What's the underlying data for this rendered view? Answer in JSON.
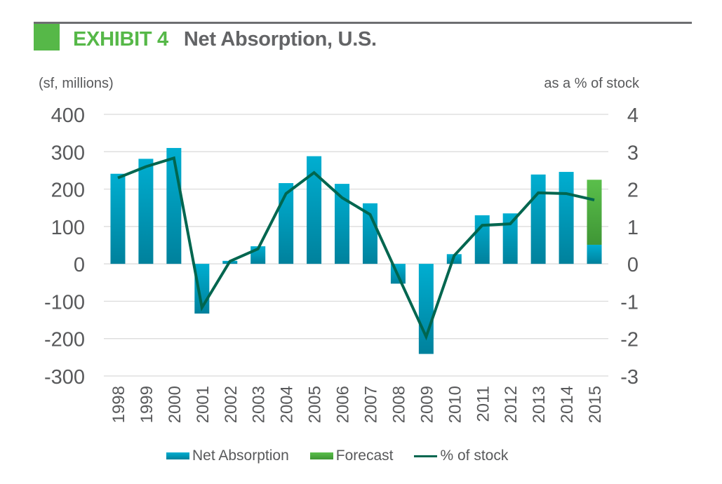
{
  "header": {
    "exhibit_label": "EXHIBIT 4",
    "title": "Net Absorption, U.S.",
    "accent_color": "#56b848",
    "title_color": "#636466"
  },
  "chart_data": {
    "type": "bar",
    "title": "EXHIBIT 4 Net Absorption, U.S.",
    "xlabel": "",
    "ylabel": "(sf, millions)",
    "y2label": "as a % of stock",
    "categories": [
      "1998",
      "1999",
      "2000",
      "2001",
      "2002",
      "2003",
      "2004",
      "2005",
      "2006",
      "2007",
      "2008",
      "2009",
      "2010",
      "2011",
      "2012",
      "2013",
      "2014",
      "2015"
    ],
    "ylim": [
      -300,
      400
    ],
    "y_ticks": [
      "400",
      "300",
      "200",
      "100",
      "0",
      "-100",
      "-200",
      "-300"
    ],
    "y_tick_values": [
      400,
      300,
      200,
      100,
      0,
      -100,
      -200,
      -300
    ],
    "y2lim": [
      -3,
      4
    ],
    "y2_ticks": [
      "4",
      "3",
      "2",
      "1",
      "0",
      "-1",
      "-2",
      "-3"
    ],
    "y2_tick_values": [
      4,
      3,
      2,
      1,
      0,
      -1,
      -2,
      -3
    ],
    "grid": true,
    "legend_position": "bottom",
    "series": [
      {
        "name": "Net Absorption",
        "type": "bar",
        "axis": "left",
        "color": "#00a3c7",
        "values": [
          241,
          281,
          310,
          -133,
          8,
          47,
          216,
          288,
          214,
          162,
          -53,
          -241,
          26,
          130,
          135,
          239,
          246,
          51
        ]
      },
      {
        "name": "Forecast",
        "type": "bar-stacked",
        "axis": "left",
        "color": "#56b848",
        "values": [
          0,
          0,
          0,
          0,
          0,
          0,
          0,
          0,
          0,
          0,
          0,
          0,
          0,
          0,
          0,
          0,
          0,
          174
        ]
      },
      {
        "name": "% of stock",
        "type": "line",
        "axis": "right",
        "color": "#00664f",
        "values": [
          2.3,
          2.6,
          2.83,
          -1.17,
          0.07,
          0.4,
          1.88,
          2.44,
          1.77,
          1.32,
          -0.32,
          -1.95,
          0.22,
          1.03,
          1.07,
          1.9,
          1.88,
          1.71
        ]
      }
    ]
  },
  "legend": {
    "items": [
      {
        "label": "Net Absorption",
        "color": "#00a3c7"
      },
      {
        "label": "Forecast",
        "color": "#56b848"
      },
      {
        "label": "% of stock",
        "color": "#00664f"
      }
    ]
  }
}
